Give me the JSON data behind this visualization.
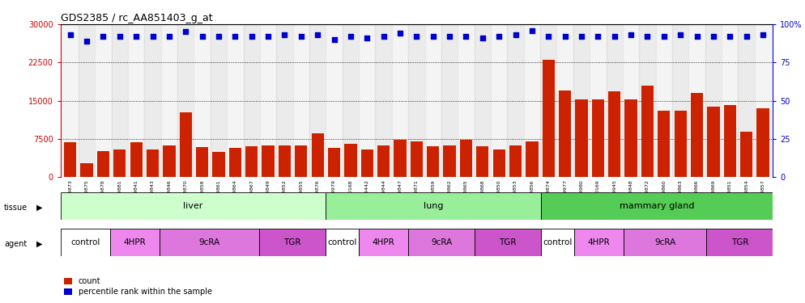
{
  "title": "GDS2385 / rc_AA851403_g_at",
  "samples": [
    "GSM89873",
    "GSM89875",
    "GSM89878",
    "GSM89881",
    "GSM89841",
    "GSM89843",
    "GSM89846",
    "GSM89870",
    "GSM89858",
    "GSM89861",
    "GSM89864",
    "GSM89867",
    "GSM89849",
    "GSM89852",
    "GSM89855",
    "GSM89876",
    "GSM89979",
    "GSM90168",
    "GSM89442",
    "GSM89844",
    "GSM89847",
    "GSM89871",
    "GSM89859",
    "GSM89862",
    "GSM89865",
    "GSM89868",
    "GSM89850",
    "GSM89853",
    "GSM89856",
    "GSM89874",
    "GSM89977",
    "GSM89980",
    "GSM90169",
    "GSM89945",
    "GSM89848",
    "GSM89872",
    "GSM89860",
    "GSM89863",
    "GSM89866",
    "GSM89869",
    "GSM89851",
    "GSM89854",
    "GSM89857"
  ],
  "counts": [
    6800,
    2800,
    5200,
    5500,
    6800,
    5400,
    6200,
    12800,
    6000,
    5000,
    5800,
    6100,
    6200,
    6200,
    6200,
    8600,
    5700,
    6600,
    5500,
    6300,
    7400,
    7000,
    6100,
    6200,
    7300,
    6100,
    5500,
    6200,
    7100,
    23000,
    17000,
    15200,
    15200,
    16800,
    15200,
    18000,
    13000,
    13000,
    16500,
    13800,
    14200,
    9000,
    13500
  ],
  "percentile_ranks_pct": [
    93,
    89,
    92,
    92,
    92,
    92,
    92,
    95,
    92,
    92,
    92,
    92,
    92,
    93,
    92,
    93,
    90,
    92,
    91,
    92,
    94,
    92,
    92,
    92,
    92,
    91,
    92,
    93,
    96,
    92,
    92,
    92,
    92,
    92,
    93,
    92,
    92,
    93,
    92,
    92,
    92,
    92,
    93
  ],
  "tissue_groups": [
    {
      "label": "liver",
      "start": 0,
      "end": 16,
      "color": "#ccffcc"
    },
    {
      "label": "lung",
      "start": 16,
      "end": 29,
      "color": "#99ee99"
    },
    {
      "label": "mammary gland",
      "start": 29,
      "end": 43,
      "color": "#55cc55"
    }
  ],
  "agent_groups": [
    {
      "label": "control",
      "start": 0,
      "end": 3,
      "color": "#ffffff"
    },
    {
      "label": "4HPR",
      "start": 3,
      "end": 6,
      "color": "#ee88ee"
    },
    {
      "label": "9cRA",
      "start": 6,
      "end": 12,
      "color": "#ee88ee"
    },
    {
      "label": "TGR",
      "start": 12,
      "end": 16,
      "color": "#cc55cc"
    },
    {
      "label": "control",
      "start": 16,
      "end": 18,
      "color": "#ffffff"
    },
    {
      "label": "4HPR",
      "start": 18,
      "end": 21,
      "color": "#ee88ee"
    },
    {
      "label": "9cRA",
      "start": 21,
      "end": 25,
      "color": "#ee88ee"
    },
    {
      "label": "TGR",
      "start": 25,
      "end": 29,
      "color": "#cc55cc"
    },
    {
      "label": "control",
      "start": 29,
      "end": 31,
      "color": "#ffffff"
    },
    {
      "label": "4HPR",
      "start": 31,
      "end": 34,
      "color": "#ee88ee"
    },
    {
      "label": "9cRA",
      "start": 34,
      "end": 39,
      "color": "#ee88ee"
    },
    {
      "label": "TGR",
      "start": 39,
      "end": 43,
      "color": "#cc55cc"
    }
  ],
  "ylim": [
    0,
    30000
  ],
  "yticks": [
    0,
    7500,
    15000,
    22500,
    30000
  ],
  "ytick_labels_left": [
    "0",
    "7500",
    "15000",
    "22500",
    "30000"
  ],
  "ytick_labels_right": [
    "0",
    "25",
    "50",
    "75",
    "100%"
  ],
  "bar_color": "#cc2200",
  "dot_color": "#0000cc",
  "plot_bg": "#ffffff",
  "left_axis_color": "#cc0000",
  "right_axis_color": "#0000cc"
}
